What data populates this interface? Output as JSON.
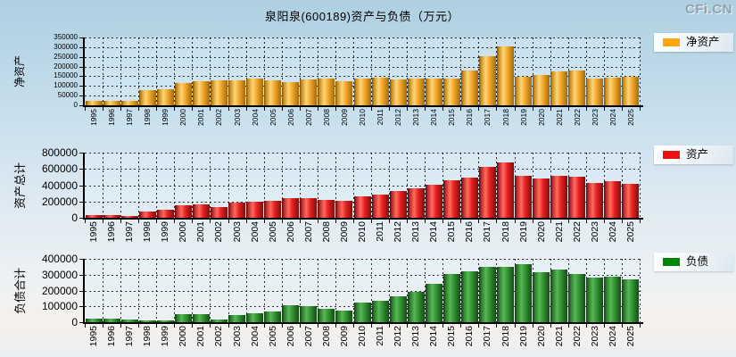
{
  "header": {
    "title": "泉阳泉(600189)资产与负债（万元）",
    "watermark": "CFi.CN"
  },
  "legends": [
    {
      "id": "net-assets",
      "label": "净资产",
      "color": "#FFA511"
    },
    {
      "id": "assets",
      "label": "资产",
      "color": "#EE1111"
    },
    {
      "id": "liabilities",
      "label": "负债",
      "color": "#008606"
    }
  ],
  "categories": [
    "1995",
    "1996",
    "1997",
    "1998",
    "1999",
    "2000",
    "2001",
    "2002",
    "2003",
    "2004",
    "2005",
    "2006",
    "2007",
    "2008",
    "2009",
    "2010",
    "2011",
    "2012",
    "2013",
    "2014",
    "2015",
    "2016",
    "2017",
    "2018",
    "2019",
    "2020",
    "2021",
    "2022",
    "2023",
    "2024",
    "2025"
  ],
  "chart_data": [
    {
      "type": "bar",
      "title": "净资产",
      "ylabel": "净资产",
      "legend": "净资产",
      "bar_style": "orange",
      "ylim": [
        0,
        350000
      ],
      "ytick_step": 50000,
      "grid": true,
      "legend_position": "right",
      "values": [
        25000,
        25000,
        21000,
        77000,
        84000,
        117000,
        123000,
        130000,
        131000,
        138000,
        131000,
        120000,
        135000,
        138000,
        126000,
        140000,
        141000,
        132000,
        138000,
        138000,
        140000,
        180000,
        255000,
        305000,
        148000,
        158000,
        174000,
        180000,
        138000,
        142000,
        146000
      ]
    },
    {
      "type": "bar",
      "title": "资产总计",
      "ylabel": "资产总计",
      "legend": "资产",
      "bar_style": "red",
      "ylim": [
        0,
        800000
      ],
      "ytick_step": 200000,
      "grid": true,
      "legend_position": "right",
      "values": [
        35000,
        35000,
        27000,
        80000,
        95000,
        150000,
        165000,
        135000,
        185000,
        195000,
        210000,
        240000,
        245000,
        220000,
        205000,
        262000,
        280000,
        327000,
        360000,
        400000,
        460000,
        496000,
        626000,
        674000,
        519000,
        481000,
        511000,
        500000,
        426000,
        444000,
        419000
      ]
    },
    {
      "type": "bar",
      "title": "负债合计",
      "ylabel": "负债合计",
      "legend": "负债",
      "bar_style": "green",
      "ylim": [
        0,
        400000
      ],
      "ytick_step": 100000,
      "grid": true,
      "legend_position": "right",
      "values": [
        21000,
        21000,
        19000,
        11000,
        11000,
        51000,
        51000,
        17000,
        47000,
        54000,
        66000,
        107000,
        100000,
        83000,
        73000,
        122000,
        133000,
        165000,
        193000,
        244000,
        306000,
        319000,
        351000,
        347000,
        366000,
        315000,
        330000,
        306000,
        282000,
        285000,
        268000
      ]
    }
  ]
}
